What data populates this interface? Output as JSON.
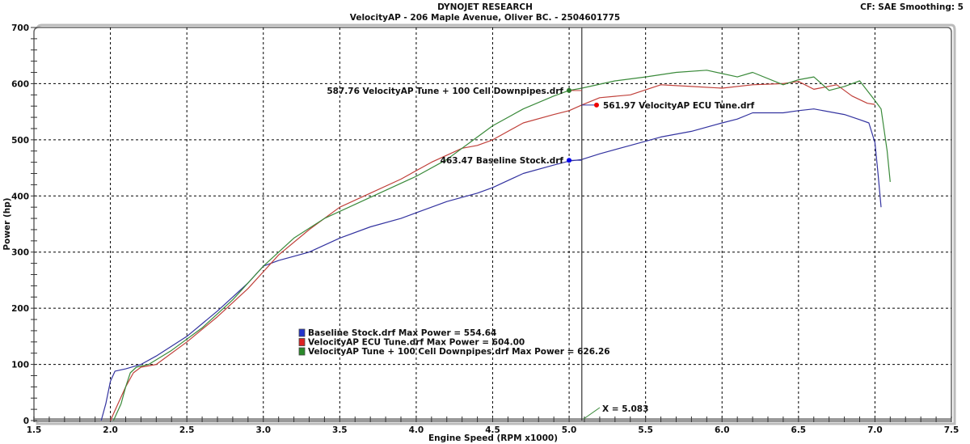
{
  "header": {
    "company": "DYNOJET RESEARCH",
    "shop": "VelocityAP - 206 Maple Avenue, Oliver BC. - 2504601775",
    "settings": "CF: SAE  Smoothing: 5"
  },
  "cursor": {
    "label": "X = 5.083",
    "x": 5.083
  },
  "colors": {
    "baseline": "#3333a0",
    "ecu": "#c0403a",
    "downpipes": "#3a8a3a",
    "grid": "#000000",
    "frame": "#888888"
  },
  "chart_data": {
    "type": "line",
    "title": "DYNOJET RESEARCH",
    "subtitle": "VelocityAP - 206 Maple Avenue, Oliver BC. - 2504601775",
    "xlabel": "Engine Speed (RPM x1000)",
    "ylabel": "Power (hp)",
    "xlim": [
      1.5,
      7.5
    ],
    "ylim": [
      0,
      700
    ],
    "xticks": [
      "1.5",
      "2.0",
      "2.5",
      "3.0",
      "3.5",
      "4.0",
      "4.5",
      "5.0",
      "5.5",
      "6.0",
      "6.5",
      "7.0",
      "7.5"
    ],
    "yticks": [
      "0",
      "100",
      "200",
      "300",
      "400",
      "500",
      "600",
      "700"
    ],
    "grid": true,
    "legend_position": "lower-center",
    "series": [
      {
        "name": "Baseline Stock.drf",
        "legend": "Baseline Stock.drf Max Power = 554.64",
        "max_power": 554.64,
        "cursor_value": 463.47,
        "cursor_label": "463.47 Baseline Stock.drf",
        "color": "#3333a0",
        "points": [
          [
            1.94,
            0
          ],
          [
            1.97,
            30
          ],
          [
            2.0,
            70
          ],
          [
            2.03,
            88
          ],
          [
            2.1,
            92
          ],
          [
            2.2,
            100
          ],
          [
            2.3,
            115
          ],
          [
            2.5,
            150
          ],
          [
            2.7,
            195
          ],
          [
            2.9,
            245
          ],
          [
            3.0,
            275
          ],
          [
            3.1,
            285
          ],
          [
            3.3,
            300
          ],
          [
            3.5,
            325
          ],
          [
            3.7,
            345
          ],
          [
            3.9,
            360
          ],
          [
            4.0,
            370
          ],
          [
            4.2,
            390
          ],
          [
            4.4,
            405
          ],
          [
            4.5,
            415
          ],
          [
            4.7,
            440
          ],
          [
            4.9,
            455
          ],
          [
            5.0,
            462
          ],
          [
            5.083,
            465
          ],
          [
            5.2,
            475
          ],
          [
            5.4,
            490
          ],
          [
            5.6,
            505
          ],
          [
            5.8,
            515
          ],
          [
            6.0,
            530
          ],
          [
            6.1,
            537
          ],
          [
            6.2,
            548
          ],
          [
            6.4,
            548
          ],
          [
            6.5,
            552
          ],
          [
            6.6,
            555
          ],
          [
            6.8,
            545
          ],
          [
            6.9,
            536
          ],
          [
            6.96,
            530
          ],
          [
            7.0,
            495
          ],
          [
            7.02,
            440
          ],
          [
            7.04,
            380
          ]
        ]
      },
      {
        "name": "VelocityAP ECU Tune.drf",
        "legend": "VelocityAP ECU Tune.drf Max Power = 604.00",
        "max_power": 604.0,
        "cursor_value": 561.97,
        "cursor_label": "561.97 VelocityAP ECU Tune.drf",
        "color": "#c0403a",
        "points": [
          [
            2.0,
            0
          ],
          [
            2.05,
            30
          ],
          [
            2.1,
            60
          ],
          [
            2.15,
            85
          ],
          [
            2.2,
            95
          ],
          [
            2.3,
            100
          ],
          [
            2.5,
            140
          ],
          [
            2.7,
            185
          ],
          [
            2.9,
            235
          ],
          [
            3.0,
            265
          ],
          [
            3.1,
            295
          ],
          [
            3.3,
            340
          ],
          [
            3.5,
            380
          ],
          [
            3.7,
            405
          ],
          [
            3.9,
            430
          ],
          [
            4.1,
            460
          ],
          [
            4.3,
            485
          ],
          [
            4.4,
            490
          ],
          [
            4.5,
            500
          ],
          [
            4.7,
            530
          ],
          [
            4.9,
            545
          ],
          [
            5.0,
            552
          ],
          [
            5.083,
            562
          ],
          [
            5.2,
            575
          ],
          [
            5.4,
            580
          ],
          [
            5.6,
            598
          ],
          [
            5.8,
            595
          ],
          [
            6.0,
            592
          ],
          [
            6.2,
            598
          ],
          [
            6.4,
            600
          ],
          [
            6.5,
            604
          ],
          [
            6.6,
            590
          ],
          [
            6.75,
            598
          ],
          [
            6.85,
            578
          ],
          [
            6.95,
            565
          ],
          [
            7.0,
            563
          ]
        ]
      },
      {
        "name": "VelocityAP Tune + 100 Cell Downpipes.drf",
        "legend": "VelocityAP Tune + 100 Cell Downpipes.drf Max Power = 626.26",
        "max_power": 626.26,
        "cursor_value": 587.76,
        "cursor_label": "587.76 VelocityAP Tune + 100 Cell Downpipes.drf",
        "color": "#3a8a3a",
        "points": [
          [
            2.02,
            0
          ],
          [
            2.07,
            30
          ],
          [
            2.1,
            60
          ],
          [
            2.13,
            85
          ],
          [
            2.17,
            95
          ],
          [
            2.25,
            100
          ],
          [
            2.4,
            125
          ],
          [
            2.6,
            165
          ],
          [
            2.8,
            215
          ],
          [
            3.0,
            275
          ],
          [
            3.2,
            325
          ],
          [
            3.4,
            360
          ],
          [
            3.6,
            385
          ],
          [
            3.8,
            410
          ],
          [
            4.0,
            435
          ],
          [
            4.2,
            465
          ],
          [
            4.4,
            505
          ],
          [
            4.5,
            525
          ],
          [
            4.7,
            555
          ],
          [
            4.9,
            578
          ],
          [
            5.0,
            588
          ],
          [
            5.083,
            592
          ],
          [
            5.3,
            605
          ],
          [
            5.5,
            612
          ],
          [
            5.7,
            620
          ],
          [
            5.9,
            624
          ],
          [
            6.1,
            612
          ],
          [
            6.2,
            620
          ],
          [
            6.4,
            598
          ],
          [
            6.5,
            607
          ],
          [
            6.6,
            612
          ],
          [
            6.7,
            588
          ],
          [
            6.8,
            595
          ],
          [
            6.9,
            605
          ],
          [
            7.0,
            570
          ],
          [
            7.04,
            555
          ],
          [
            7.08,
            480
          ],
          [
            7.1,
            425
          ]
        ]
      }
    ]
  }
}
